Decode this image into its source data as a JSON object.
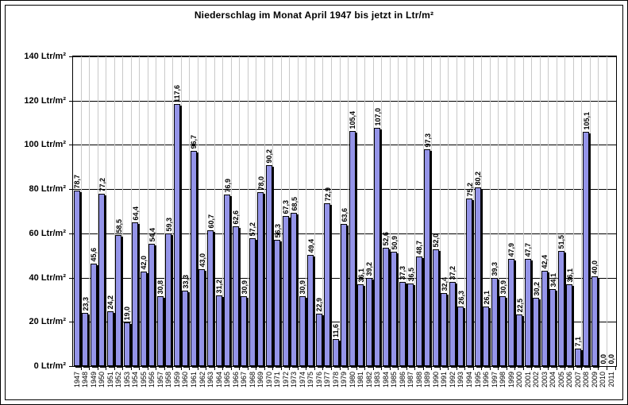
{
  "window": {
    "background": "#FFFFFF",
    "outer_border_color": "#000000",
    "inner_border_color": "#000000"
  },
  "chart_data": {
    "type": "bar",
    "title": "Niederschlag im Monat April 1947 bis jetzt in Ltr/m²",
    "unit": "Ltr/m²",
    "xlabel": "",
    "ylabel": "",
    "ylim": [
      0,
      140
    ],
    "legend": "none",
    "grid": {
      "horizontal": true,
      "vertical": true
    },
    "bar_color": "#9494E8",
    "bar_border_color": "#000000",
    "bar_shadow_color": "#000000",
    "vertical_grid_color": "#C9C9C9",
    "horizontal_grid_color": "#000000",
    "y_ticks": [
      {
        "value": 0,
        "label": "0 Ltr/m²"
      },
      {
        "value": 20,
        "label": "20 Ltr/m²"
      },
      {
        "value": 40,
        "label": "40 Ltr/m²"
      },
      {
        "value": 60,
        "label": "60 Ltr/m²"
      },
      {
        "value": 80,
        "label": "80 Ltr/m²"
      },
      {
        "value": 100,
        "label": "100 Ltr/m²"
      },
      {
        "value": 120,
        "label": "120 Ltr/m²"
      },
      {
        "value": 140,
        "label": "140 Ltr/m²"
      }
    ],
    "categories": [
      "1947",
      "1948",
      "1949",
      "1950",
      "1951",
      "1952",
      "1953",
      "1954",
      "1955",
      "1956",
      "1957",
      "1958",
      "1959",
      "1960",
      "1961",
      "1962",
      "1963",
      "1964",
      "1965",
      "1966",
      "1967",
      "1968",
      "1969",
      "1970",
      "1971",
      "1972",
      "1973",
      "1974",
      "1975",
      "1976",
      "1977",
      "1978",
      "1979",
      "1980",
      "1981",
      "1982",
      "1983",
      "1984",
      "1985",
      "1986",
      "1987",
      "1988",
      "1989",
      "1990",
      "1991",
      "1992",
      "1993",
      "1994",
      "1995",
      "1996",
      "1997",
      "1998",
      "1999",
      "2000",
      "2001",
      "2002",
      "2003",
      "2004",
      "2005",
      "2006",
      "2007",
      "2008",
      "2009",
      "2010",
      "2011"
    ],
    "values": [
      78.7,
      23.3,
      45.6,
      77.2,
      24.2,
      58.5,
      19.0,
      64.4,
      42.0,
      54.4,
      30.8,
      59.3,
      117.6,
      33.3,
      96.7,
      43.0,
      60.7,
      31.2,
      76.9,
      62.6,
      30.9,
      57.2,
      78.0,
      90.2,
      56.3,
      67.3,
      68.5,
      30.9,
      49.4,
      22.9,
      72.9,
      11.6,
      63.6,
      105.4,
      36.1,
      39.2,
      107.0,
      52.6,
      50.9,
      37.3,
      36.5,
      48.7,
      97.3,
      52.0,
      32.4,
      37.2,
      26.3,
      75.2,
      80.2,
      26.1,
      39.3,
      30.9,
      47.9,
      22.5,
      47.7,
      30.2,
      42.4,
      34.1,
      51.5,
      36.1,
      7.1,
      105.1,
      40.0,
      0.0,
      0.0
    ],
    "value_labels": [
      "78,7",
      "23,3",
      "45,6",
      "77,2",
      "24,2",
      "58,5",
      "19,0",
      "64,4",
      "42,0",
      "54,4",
      "30,8",
      "59,3",
      "117,6",
      "33,3",
      "96,7",
      "43,0",
      "60,7",
      "31,2",
      "76,9",
      "62,6",
      "30,9",
      "57,2",
      "78,0",
      "90,2",
      "56,3",
      "67,3",
      "68,5",
      "30,9",
      "49,4",
      "22,9",
      "72,9",
      "11,6",
      "63,6",
      "105,4",
      "36,1",
      "39,2",
      "107,0",
      "52,6",
      "50,9",
      "37,3",
      "36,5",
      "48,7",
      "97,3",
      "52,0",
      "32,4",
      "37,2",
      "26,3",
      "75,2",
      "80,2",
      "26,1",
      "39,3",
      "30,9",
      "47,9",
      "22,5",
      "47,7",
      "30,2",
      "42,4",
      "34,1",
      "51,5",
      "36,1",
      "7,1",
      "105,1",
      "40,0",
      "0,0",
      "0,0"
    ]
  }
}
